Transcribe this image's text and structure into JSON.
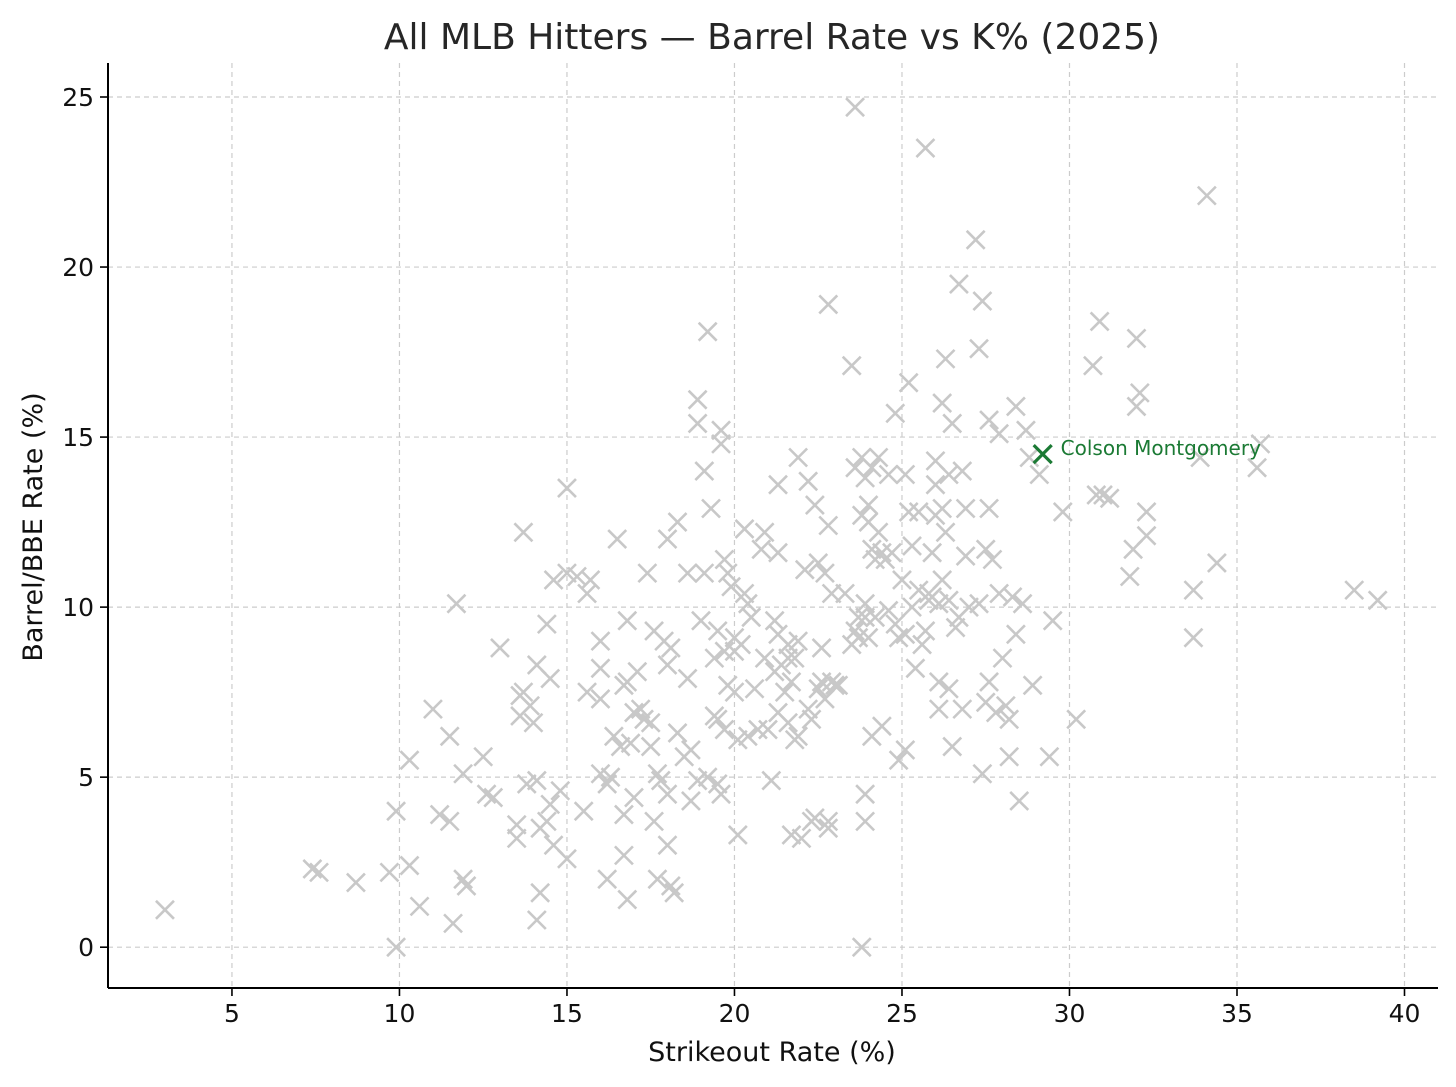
{
  "chart_data": {
    "type": "scatter",
    "title": "All MLB Hitters — Barrel Rate vs K% (2025)",
    "xlabel": "Strikeout Rate (%)",
    "ylabel": "Barrel/BBE Rate (%)",
    "xlim": [
      1.3,
      41.0
    ],
    "ylim": [
      -1.2,
      26.0
    ],
    "xticks": [
      5,
      10,
      15,
      20,
      25,
      30,
      35,
      40
    ],
    "yticks": [
      0,
      5,
      10,
      15,
      20,
      25
    ],
    "grid": true,
    "marker": "x",
    "colors": {
      "points": "#c8c8c8",
      "highlight": "#1b7a34",
      "grid": "#cccccc",
      "axis": "#000000"
    },
    "series": [
      {
        "points": [
          [
            3.0,
            1.1
          ],
          [
            7.4,
            2.3
          ],
          [
            7.6,
            2.2
          ],
          [
            8.7,
            1.9
          ],
          [
            9.7,
            2.2
          ],
          [
            9.9,
            0.0
          ],
          [
            9.9,
            4.0
          ],
          [
            10.3,
            2.4
          ],
          [
            10.3,
            5.5
          ],
          [
            10.6,
            1.2
          ],
          [
            11.0,
            7.0
          ],
          [
            11.2,
            3.9
          ],
          [
            11.5,
            6.2
          ],
          [
            11.5,
            3.7
          ],
          [
            11.6,
            0.7
          ],
          [
            11.7,
            10.1
          ],
          [
            11.9,
            5.1
          ],
          [
            11.9,
            2.0
          ],
          [
            12.0,
            1.8
          ],
          [
            12.5,
            5.6
          ],
          [
            12.6,
            4.5
          ],
          [
            12.8,
            4.4
          ],
          [
            13.0,
            8.8
          ],
          [
            13.5,
            3.2
          ],
          [
            13.5,
            3.6
          ],
          [
            13.6,
            7.4
          ],
          [
            13.6,
            6.8
          ],
          [
            13.7,
            7.5
          ],
          [
            13.7,
            12.2
          ],
          [
            13.8,
            4.8
          ],
          [
            13.9,
            7.1
          ],
          [
            14.0,
            6.6
          ],
          [
            14.1,
            8.3
          ],
          [
            14.1,
            4.9
          ],
          [
            14.1,
            0.8
          ],
          [
            14.2,
            1.6
          ],
          [
            14.2,
            3.5
          ],
          [
            14.4,
            3.7
          ],
          [
            14.4,
            9.5
          ],
          [
            14.5,
            7.9
          ],
          [
            14.5,
            4.2
          ],
          [
            14.6,
            3.0
          ],
          [
            14.6,
            10.8
          ],
          [
            14.8,
            4.6
          ],
          [
            15.0,
            2.6
          ],
          [
            15.0,
            11.0
          ],
          [
            15.0,
            13.5
          ],
          [
            15.3,
            10.9
          ],
          [
            15.5,
            4.0
          ],
          [
            15.6,
            7.5
          ],
          [
            15.6,
            10.4
          ],
          [
            15.7,
            10.8
          ],
          [
            16.0,
            7.3
          ],
          [
            16.0,
            9.0
          ],
          [
            16.0,
            5.1
          ],
          [
            16.0,
            8.2
          ],
          [
            16.2,
            4.8
          ],
          [
            16.2,
            2.0
          ],
          [
            16.3,
            5.0
          ],
          [
            16.4,
            6.2
          ],
          [
            16.5,
            12.0
          ],
          [
            16.6,
            5.9
          ],
          [
            16.7,
            3.9
          ],
          [
            16.7,
            7.7
          ],
          [
            16.7,
            2.7
          ],
          [
            16.8,
            7.8
          ],
          [
            16.8,
            9.6
          ],
          [
            16.8,
            1.4
          ],
          [
            16.9,
            6.0
          ],
          [
            17.0,
            4.4
          ],
          [
            17.0,
            6.9
          ],
          [
            17.1,
            8.1
          ],
          [
            17.2,
            7.0
          ],
          [
            17.3,
            6.7
          ],
          [
            17.4,
            11.0
          ],
          [
            17.5,
            6.6
          ],
          [
            17.5,
            5.9
          ],
          [
            17.6,
            9.3
          ],
          [
            17.6,
            3.7
          ],
          [
            17.7,
            2.0
          ],
          [
            17.7,
            5.1
          ],
          [
            17.8,
            4.9
          ],
          [
            17.9,
            9.0
          ],
          [
            18.0,
            12.0
          ],
          [
            18.0,
            8.3
          ],
          [
            18.0,
            3.0
          ],
          [
            18.0,
            4.5
          ],
          [
            18.1,
            1.8
          ],
          [
            18.1,
            8.8
          ],
          [
            18.2,
            1.6
          ],
          [
            18.3,
            12.5
          ],
          [
            18.3,
            6.3
          ],
          [
            18.5,
            5.6
          ],
          [
            18.6,
            11.0
          ],
          [
            18.6,
            7.9
          ],
          [
            18.7,
            4.3
          ],
          [
            18.7,
            5.8
          ],
          [
            18.9,
            4.9
          ],
          [
            18.9,
            16.1
          ],
          [
            18.9,
            15.4
          ],
          [
            19.0,
            9.6
          ],
          [
            19.1,
            14.0
          ],
          [
            19.1,
            11.0
          ],
          [
            19.2,
            18.1
          ],
          [
            19.2,
            5.0
          ],
          [
            19.3,
            12.9
          ],
          [
            19.4,
            8.5
          ],
          [
            19.4,
            6.8
          ],
          [
            19.5,
            4.8
          ],
          [
            19.5,
            9.3
          ],
          [
            19.5,
            6.7
          ],
          [
            19.6,
            4.5
          ],
          [
            19.6,
            15.2
          ],
          [
            19.6,
            14.8
          ],
          [
            19.7,
            11.4
          ],
          [
            19.7,
            6.4
          ],
          [
            19.7,
            8.7
          ],
          [
            19.8,
            11.0
          ],
          [
            19.8,
            7.7
          ],
          [
            19.9,
            10.6
          ],
          [
            20.0,
            9.1
          ],
          [
            20.0,
            7.5
          ],
          [
            20.0,
            8.7
          ],
          [
            20.1,
            3.3
          ],
          [
            20.1,
            6.1
          ],
          [
            20.2,
            8.9
          ],
          [
            20.3,
            10.4
          ],
          [
            20.3,
            12.3
          ],
          [
            20.4,
            10.1
          ],
          [
            20.4,
            6.2
          ],
          [
            20.5,
            9.7
          ],
          [
            20.6,
            7.6
          ],
          [
            20.7,
            6.4
          ],
          [
            20.8,
            11.7
          ],
          [
            20.9,
            12.2
          ],
          [
            20.9,
            8.5
          ],
          [
            21.0,
            6.4
          ],
          [
            21.1,
            4.9
          ],
          [
            21.2,
            9.6
          ],
          [
            21.2,
            8.1
          ],
          [
            21.3,
            6.9
          ],
          [
            21.3,
            9.2
          ],
          [
            21.3,
            11.6
          ],
          [
            21.3,
            13.6
          ],
          [
            21.4,
            8.3
          ],
          [
            21.5,
            7.5
          ],
          [
            21.6,
            8.9
          ],
          [
            21.6,
            6.6
          ],
          [
            21.6,
            8.5
          ],
          [
            21.7,
            3.3
          ],
          [
            21.7,
            7.8
          ],
          [
            21.8,
            6.1
          ],
          [
            21.8,
            8.5
          ],
          [
            21.9,
            6.2
          ],
          [
            21.9,
            9.0
          ],
          [
            21.9,
            14.4
          ],
          [
            22.0,
            3.2
          ],
          [
            22.1,
            11.1
          ],
          [
            22.2,
            7.0
          ],
          [
            22.2,
            13.7
          ],
          [
            22.3,
            3.7
          ],
          [
            22.3,
            6.7
          ],
          [
            22.4,
            13.0
          ],
          [
            22.4,
            3.8
          ],
          [
            22.5,
            11.3
          ],
          [
            22.5,
            7.6
          ],
          [
            22.6,
            7.8
          ],
          [
            22.6,
            8.8
          ],
          [
            22.7,
            7.3
          ],
          [
            22.7,
            11.0
          ],
          [
            22.8,
            18.9
          ],
          [
            22.8,
            3.5
          ],
          [
            22.8,
            12.4
          ],
          [
            22.8,
            3.7
          ],
          [
            22.9,
            10.4
          ],
          [
            22.9,
            7.8
          ],
          [
            23.0,
            7.7
          ],
          [
            23.1,
            7.7
          ],
          [
            23.3,
            10.4
          ],
          [
            23.5,
            8.9
          ],
          [
            23.5,
            17.1
          ],
          [
            23.6,
            14.1
          ],
          [
            23.6,
            24.7
          ],
          [
            23.6,
            9.3
          ],
          [
            23.7,
            9.7
          ],
          [
            23.7,
            9.1
          ],
          [
            23.8,
            12.7
          ],
          [
            23.8,
            14.4
          ],
          [
            23.8,
            0.0
          ],
          [
            23.9,
            10.1
          ],
          [
            23.9,
            13.8
          ],
          [
            23.9,
            9.7
          ],
          [
            23.9,
            4.5
          ],
          [
            23.9,
            3.7
          ],
          [
            24.0,
            12.5
          ],
          [
            24.0,
            13.0
          ],
          [
            24.0,
            9.1
          ],
          [
            24.1,
            6.2
          ],
          [
            24.1,
            14.1
          ],
          [
            24.1,
            11.7
          ],
          [
            24.2,
            11.4
          ],
          [
            24.2,
            9.7
          ],
          [
            24.3,
            14.4
          ],
          [
            24.3,
            12.2
          ],
          [
            24.4,
            6.5
          ],
          [
            24.4,
            11.6
          ],
          [
            24.5,
            11.4
          ],
          [
            24.6,
            13.9
          ],
          [
            24.6,
            9.9
          ],
          [
            24.7,
            11.6
          ],
          [
            24.8,
            15.7
          ],
          [
            24.8,
            9.5
          ],
          [
            24.9,
            5.5
          ],
          [
            24.9,
            9.1
          ],
          [
            25.0,
            10.8
          ],
          [
            25.1,
            13.9
          ],
          [
            25.1,
            9.2
          ],
          [
            25.1,
            5.8
          ],
          [
            25.2,
            16.6
          ],
          [
            25.2,
            12.8
          ],
          [
            25.3,
            11.8
          ],
          [
            25.3,
            10.0
          ],
          [
            25.4,
            8.2
          ],
          [
            25.5,
            12.8
          ],
          [
            25.5,
            10.5
          ],
          [
            25.6,
            8.9
          ],
          [
            25.7,
            23.5
          ],
          [
            25.7,
            9.3
          ],
          [
            25.8,
            10.4
          ],
          [
            25.8,
            10.2
          ],
          [
            25.9,
            11.6
          ],
          [
            25.9,
            10.3
          ],
          [
            26.0,
            12.7
          ],
          [
            26.0,
            14.3
          ],
          [
            26.0,
            13.6
          ],
          [
            26.1,
            7.8
          ],
          [
            26.1,
            10.1
          ],
          [
            26.1,
            7.0
          ],
          [
            26.2,
            10.8
          ],
          [
            26.2,
            12.9
          ],
          [
            26.2,
            16.0
          ],
          [
            26.3,
            17.3
          ],
          [
            26.3,
            12.2
          ],
          [
            26.4,
            10.2
          ],
          [
            26.4,
            13.9
          ],
          [
            26.4,
            7.6
          ],
          [
            26.5,
            5.9
          ],
          [
            26.5,
            15.4
          ],
          [
            26.6,
            9.4
          ],
          [
            26.7,
            19.5
          ],
          [
            26.7,
            9.7
          ],
          [
            26.8,
            14.0
          ],
          [
            26.8,
            7.0
          ],
          [
            26.9,
            11.5
          ],
          [
            26.9,
            12.9
          ],
          [
            27.0,
            10.0
          ],
          [
            27.2,
            20.8
          ],
          [
            27.3,
            10.1
          ],
          [
            27.3,
            17.6
          ],
          [
            27.4,
            19.0
          ],
          [
            27.4,
            5.1
          ],
          [
            27.5,
            7.2
          ],
          [
            27.5,
            11.7
          ],
          [
            27.6,
            7.8
          ],
          [
            27.6,
            12.9
          ],
          [
            27.6,
            15.5
          ],
          [
            27.7,
            11.4
          ],
          [
            27.8,
            6.9
          ],
          [
            27.9,
            15.1
          ],
          [
            27.9,
            10.4
          ],
          [
            28.0,
            8.5
          ],
          [
            28.1,
            7.1
          ],
          [
            28.2,
            6.7
          ],
          [
            28.2,
            5.6
          ],
          [
            28.3,
            10.3
          ],
          [
            28.4,
            15.9
          ],
          [
            28.4,
            9.2
          ],
          [
            28.5,
            4.3
          ],
          [
            28.6,
            10.1
          ],
          [
            28.7,
            15.2
          ],
          [
            28.8,
            14.4
          ],
          [
            28.9,
            7.7
          ],
          [
            29.1,
            13.9
          ],
          [
            29.4,
            5.6
          ],
          [
            29.5,
            9.6
          ],
          [
            29.8,
            12.8
          ],
          [
            30.2,
            6.7
          ],
          [
            30.7,
            17.1
          ],
          [
            30.8,
            13.3
          ],
          [
            30.9,
            18.4
          ],
          [
            31.0,
            13.3
          ],
          [
            31.2,
            13.2
          ],
          [
            31.8,
            10.9
          ],
          [
            31.9,
            11.7
          ],
          [
            32.0,
            17.9
          ],
          [
            32.0,
            15.9
          ],
          [
            32.1,
            16.3
          ],
          [
            32.3,
            12.8
          ],
          [
            32.3,
            12.1
          ],
          [
            33.7,
            10.5
          ],
          [
            33.7,
            9.1
          ],
          [
            33.9,
            14.4
          ],
          [
            34.1,
            22.1
          ],
          [
            34.4,
            11.3
          ],
          [
            35.6,
            14.1
          ],
          [
            35.7,
            14.8
          ],
          [
            38.5,
            10.5
          ],
          [
            39.2,
            10.2
          ]
        ]
      },
      {
        "name": "Colson Montgomery",
        "highlight": true,
        "points": [
          [
            29.2,
            14.5
          ]
        ]
      }
    ]
  }
}
